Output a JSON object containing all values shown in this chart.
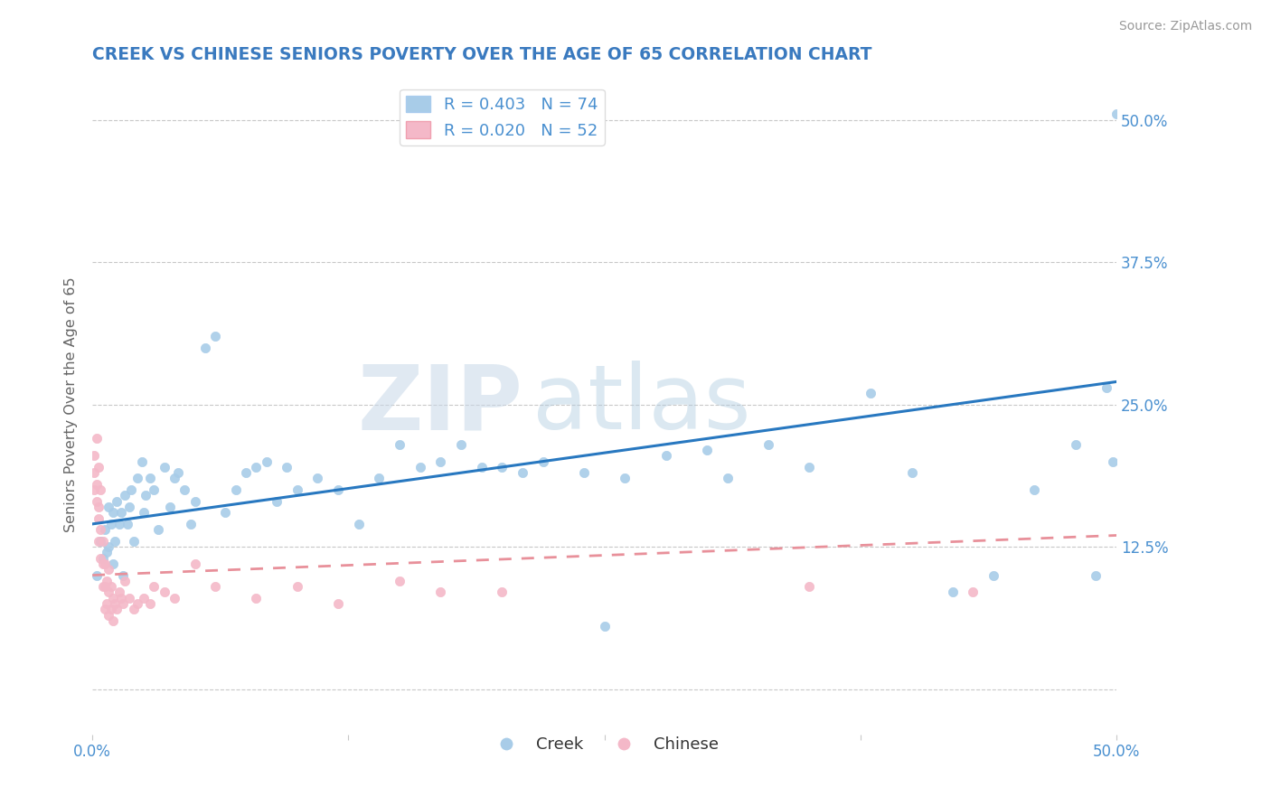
{
  "title": "CREEK VS CHINESE SENIORS POVERTY OVER THE AGE OF 65 CORRELATION CHART",
  "source": "Source: ZipAtlas.com",
  "ylabel": "Seniors Poverty Over the Age of 65",
  "creek_label": "Creek",
  "chinese_label": "Chinese",
  "creek_R": 0.403,
  "creek_N": 74,
  "chinese_R": 0.02,
  "chinese_N": 52,
  "creek_color": "#a8cce8",
  "chinese_color": "#f4b8c8",
  "creek_line_color": "#2878c0",
  "chinese_line_color": "#e8909a",
  "watermark_zip": "ZIP",
  "watermark_atlas": "atlas",
  "xlim": [
    0.0,
    0.5
  ],
  "ylim": [
    -0.04,
    0.54
  ],
  "xticks": [
    0.0,
    0.125,
    0.25,
    0.375,
    0.5
  ],
  "xtick_labels": [
    "0.0%",
    "",
    "",
    "",
    "50.0%"
  ],
  "ytick_positions": [
    0.0,
    0.125,
    0.25,
    0.375,
    0.5
  ],
  "ytick_labels": [
    "",
    "12.5%",
    "25.0%",
    "37.5%",
    "50.0%"
  ],
  "background_color": "#ffffff",
  "grid_color": "#c8c8c8",
  "title_color": "#3a7abf",
  "axis_label_color": "#666666",
  "tick_label_color": "#4a90d0",
  "creek_x": [
    0.002,
    0.004,
    0.005,
    0.006,
    0.007,
    0.008,
    0.008,
    0.009,
    0.01,
    0.01,
    0.011,
    0.012,
    0.013,
    0.014,
    0.015,
    0.016,
    0.017,
    0.018,
    0.019,
    0.02,
    0.022,
    0.024,
    0.025,
    0.026,
    0.028,
    0.03,
    0.032,
    0.035,
    0.038,
    0.04,
    0.042,
    0.045,
    0.048,
    0.05,
    0.055,
    0.06,
    0.065,
    0.07,
    0.075,
    0.08,
    0.085,
    0.09,
    0.095,
    0.1,
    0.11,
    0.12,
    0.13,
    0.14,
    0.15,
    0.16,
    0.17,
    0.18,
    0.19,
    0.2,
    0.21,
    0.22,
    0.24,
    0.25,
    0.26,
    0.28,
    0.3,
    0.31,
    0.33,
    0.35,
    0.38,
    0.4,
    0.42,
    0.44,
    0.46,
    0.48,
    0.49,
    0.495,
    0.498,
    0.5
  ],
  "creek_y": [
    0.1,
    0.13,
    0.115,
    0.14,
    0.12,
    0.125,
    0.16,
    0.145,
    0.11,
    0.155,
    0.13,
    0.165,
    0.145,
    0.155,
    0.1,
    0.17,
    0.145,
    0.16,
    0.175,
    0.13,
    0.185,
    0.2,
    0.155,
    0.17,
    0.185,
    0.175,
    0.14,
    0.195,
    0.16,
    0.185,
    0.19,
    0.175,
    0.145,
    0.165,
    0.3,
    0.31,
    0.155,
    0.175,
    0.19,
    0.195,
    0.2,
    0.165,
    0.195,
    0.175,
    0.185,
    0.175,
    0.145,
    0.185,
    0.215,
    0.195,
    0.2,
    0.215,
    0.195,
    0.195,
    0.19,
    0.2,
    0.19,
    0.055,
    0.185,
    0.205,
    0.21,
    0.185,
    0.215,
    0.195,
    0.26,
    0.19,
    0.085,
    0.1,
    0.175,
    0.215,
    0.1,
    0.265,
    0.2,
    0.505
  ],
  "chinese_x": [
    0.001,
    0.001,
    0.001,
    0.002,
    0.002,
    0.002,
    0.003,
    0.003,
    0.003,
    0.003,
    0.004,
    0.004,
    0.004,
    0.005,
    0.005,
    0.005,
    0.006,
    0.006,
    0.006,
    0.007,
    0.007,
    0.008,
    0.008,
    0.008,
    0.009,
    0.009,
    0.01,
    0.01,
    0.011,
    0.012,
    0.013,
    0.014,
    0.015,
    0.016,
    0.018,
    0.02,
    0.022,
    0.025,
    0.028,
    0.03,
    0.035,
    0.04,
    0.05,
    0.06,
    0.08,
    0.1,
    0.12,
    0.15,
    0.17,
    0.2,
    0.35,
    0.43
  ],
  "chinese_y": [
    0.175,
    0.19,
    0.205,
    0.165,
    0.18,
    0.22,
    0.13,
    0.15,
    0.16,
    0.195,
    0.115,
    0.14,
    0.175,
    0.09,
    0.11,
    0.13,
    0.07,
    0.09,
    0.11,
    0.075,
    0.095,
    0.065,
    0.085,
    0.105,
    0.07,
    0.09,
    0.06,
    0.08,
    0.075,
    0.07,
    0.085,
    0.08,
    0.075,
    0.095,
    0.08,
    0.07,
    0.075,
    0.08,
    0.075,
    0.09,
    0.085,
    0.08,
    0.11,
    0.09,
    0.08,
    0.09,
    0.075,
    0.095,
    0.085,
    0.085,
    0.09,
    0.085
  ],
  "creek_trend_x0": 0.0,
  "creek_trend_x1": 0.5,
  "creek_trend_y0": 0.145,
  "creek_trend_y1": 0.27,
  "chinese_trend_x0": 0.0,
  "chinese_trend_x1": 0.5,
  "chinese_trend_y0": 0.1,
  "chinese_trend_y1": 0.135
}
